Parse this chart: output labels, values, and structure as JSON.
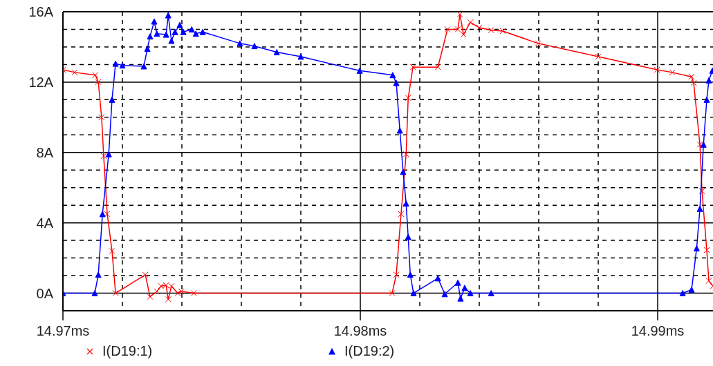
{
  "chart_data": {
    "type": "line",
    "xlim": [
      14.97,
      14.99186
    ],
    "ylim": [
      -1,
      16
    ],
    "xticks": [
      {
        "value": 14.97,
        "label": "14.97ms"
      },
      {
        "value": 14.972,
        "label": null
      },
      {
        "value": 14.974,
        "label": null
      },
      {
        "value": 14.976,
        "label": null
      },
      {
        "value": 14.978,
        "label": null
      },
      {
        "value": 14.98,
        "label": "14.98ms"
      },
      {
        "value": 14.982,
        "label": null
      },
      {
        "value": 14.984,
        "label": null
      },
      {
        "value": 14.986,
        "label": null
      },
      {
        "value": 14.988,
        "label": null
      },
      {
        "value": 14.99,
        "label": "14.99ms"
      }
    ],
    "yticks": [
      {
        "value": 0,
        "label": "0A"
      },
      {
        "value": 1,
        "label": null
      },
      {
        "value": 2,
        "label": null
      },
      {
        "value": 3,
        "label": null
      },
      {
        "value": 4,
        "label": "4A"
      },
      {
        "value": 5,
        "label": null
      },
      {
        "value": 6,
        "label": null
      },
      {
        "value": 7,
        "label": null
      },
      {
        "value": 8,
        "label": "8A"
      },
      {
        "value": 9,
        "label": null
      },
      {
        "value": 10,
        "label": null
      },
      {
        "value": 11,
        "label": null
      },
      {
        "value": 12,
        "label": "12A"
      },
      {
        "value": 13,
        "label": null
      },
      {
        "value": 14,
        "label": null
      },
      {
        "value": 15,
        "label": null
      },
      {
        "value": 16,
        "label": "16A"
      }
    ],
    "grid": true,
    "legend": "bottom",
    "line_style": "solid",
    "series": [
      {
        "name": "I(D19:1)",
        "color": "#ff0000",
        "marker": "cross",
        "x": [
          14.97,
          14.9704,
          14.97109,
          14.97119,
          14.9713,
          14.97137,
          14.97149,
          14.97165,
          14.97177,
          14.97277,
          14.97293,
          14.97316,
          14.9733,
          14.97347,
          14.97354,
          14.97365,
          14.97386,
          14.97398,
          14.9744,
          14.98107,
          14.98121,
          14.98137,
          14.98154,
          14.98161,
          14.98177,
          14.98261,
          14.98293,
          14.98328,
          14.98335,
          14.98347,
          14.9837,
          14.984,
          14.9844,
          14.98479,
          14.98598,
          14.988,
          14.98998,
          14.99049,
          14.99114,
          14.99121,
          14.99142,
          14.99149,
          14.99165,
          14.99172,
          14.99186
        ],
        "values": [
          12.7,
          12.55,
          12.4,
          12,
          10,
          7.8,
          4.5,
          2.4,
          0,
          1.05,
          -0.2,
          0.1,
          0.4,
          0.45,
          -0.35,
          0.4,
          0,
          0.1,
          0,
          0,
          1.05,
          4.5,
          7.9,
          11.1,
          12.85,
          12.85,
          15,
          15,
          15.85,
          14.7,
          15.4,
          15.1,
          14.95,
          14.9,
          14.2,
          13.45,
          12.7,
          12.55,
          12.3,
          11.95,
          8.45,
          5.8,
          2.45,
          0.7,
          0.4
        ]
      },
      {
        "name": "I(D19:2)",
        "color": "#0000ff",
        "marker": "triangle",
        "x": [
          14.97,
          14.97107,
          14.97119,
          14.97133,
          14.97154,
          14.97165,
          14.97177,
          14.972,
          14.97272,
          14.97284,
          14.97293,
          14.97307,
          14.97316,
          14.97347,
          14.97354,
          14.97365,
          14.97377,
          14.97393,
          14.97405,
          14.97433,
          14.97447,
          14.9747,
          14.97595,
          14.97644,
          14.97719,
          14.978,
          14.97998,
          14.98109,
          14.98121,
          14.98133,
          14.98144,
          14.98154,
          14.98161,
          14.98168,
          14.98179,
          14.98261,
          14.98284,
          14.98328,
          14.98337,
          14.98351,
          14.9837,
          14.9844,
          14.99084,
          14.99114,
          14.99131,
          14.99142,
          14.99154,
          14.99165,
          14.99172,
          14.99184
        ],
        "values": [
          0,
          0,
          1.05,
          4.5,
          7.9,
          11,
          13.05,
          12.95,
          12.9,
          13.9,
          14.6,
          15.45,
          14.75,
          14.7,
          15.8,
          14.35,
          14.85,
          15.25,
          14.85,
          15,
          14.75,
          14.85,
          14.2,
          14.05,
          13.7,
          13.45,
          12.65,
          12.4,
          11.95,
          9.25,
          6.9,
          5.1,
          3.2,
          1.05,
          0,
          0.85,
          -0.05,
          0.6,
          -0.3,
          0.3,
          0,
          0,
          0,
          0.2,
          2.55,
          4.8,
          8.45,
          11,
          12.1,
          12.65
        ]
      }
    ]
  }
}
